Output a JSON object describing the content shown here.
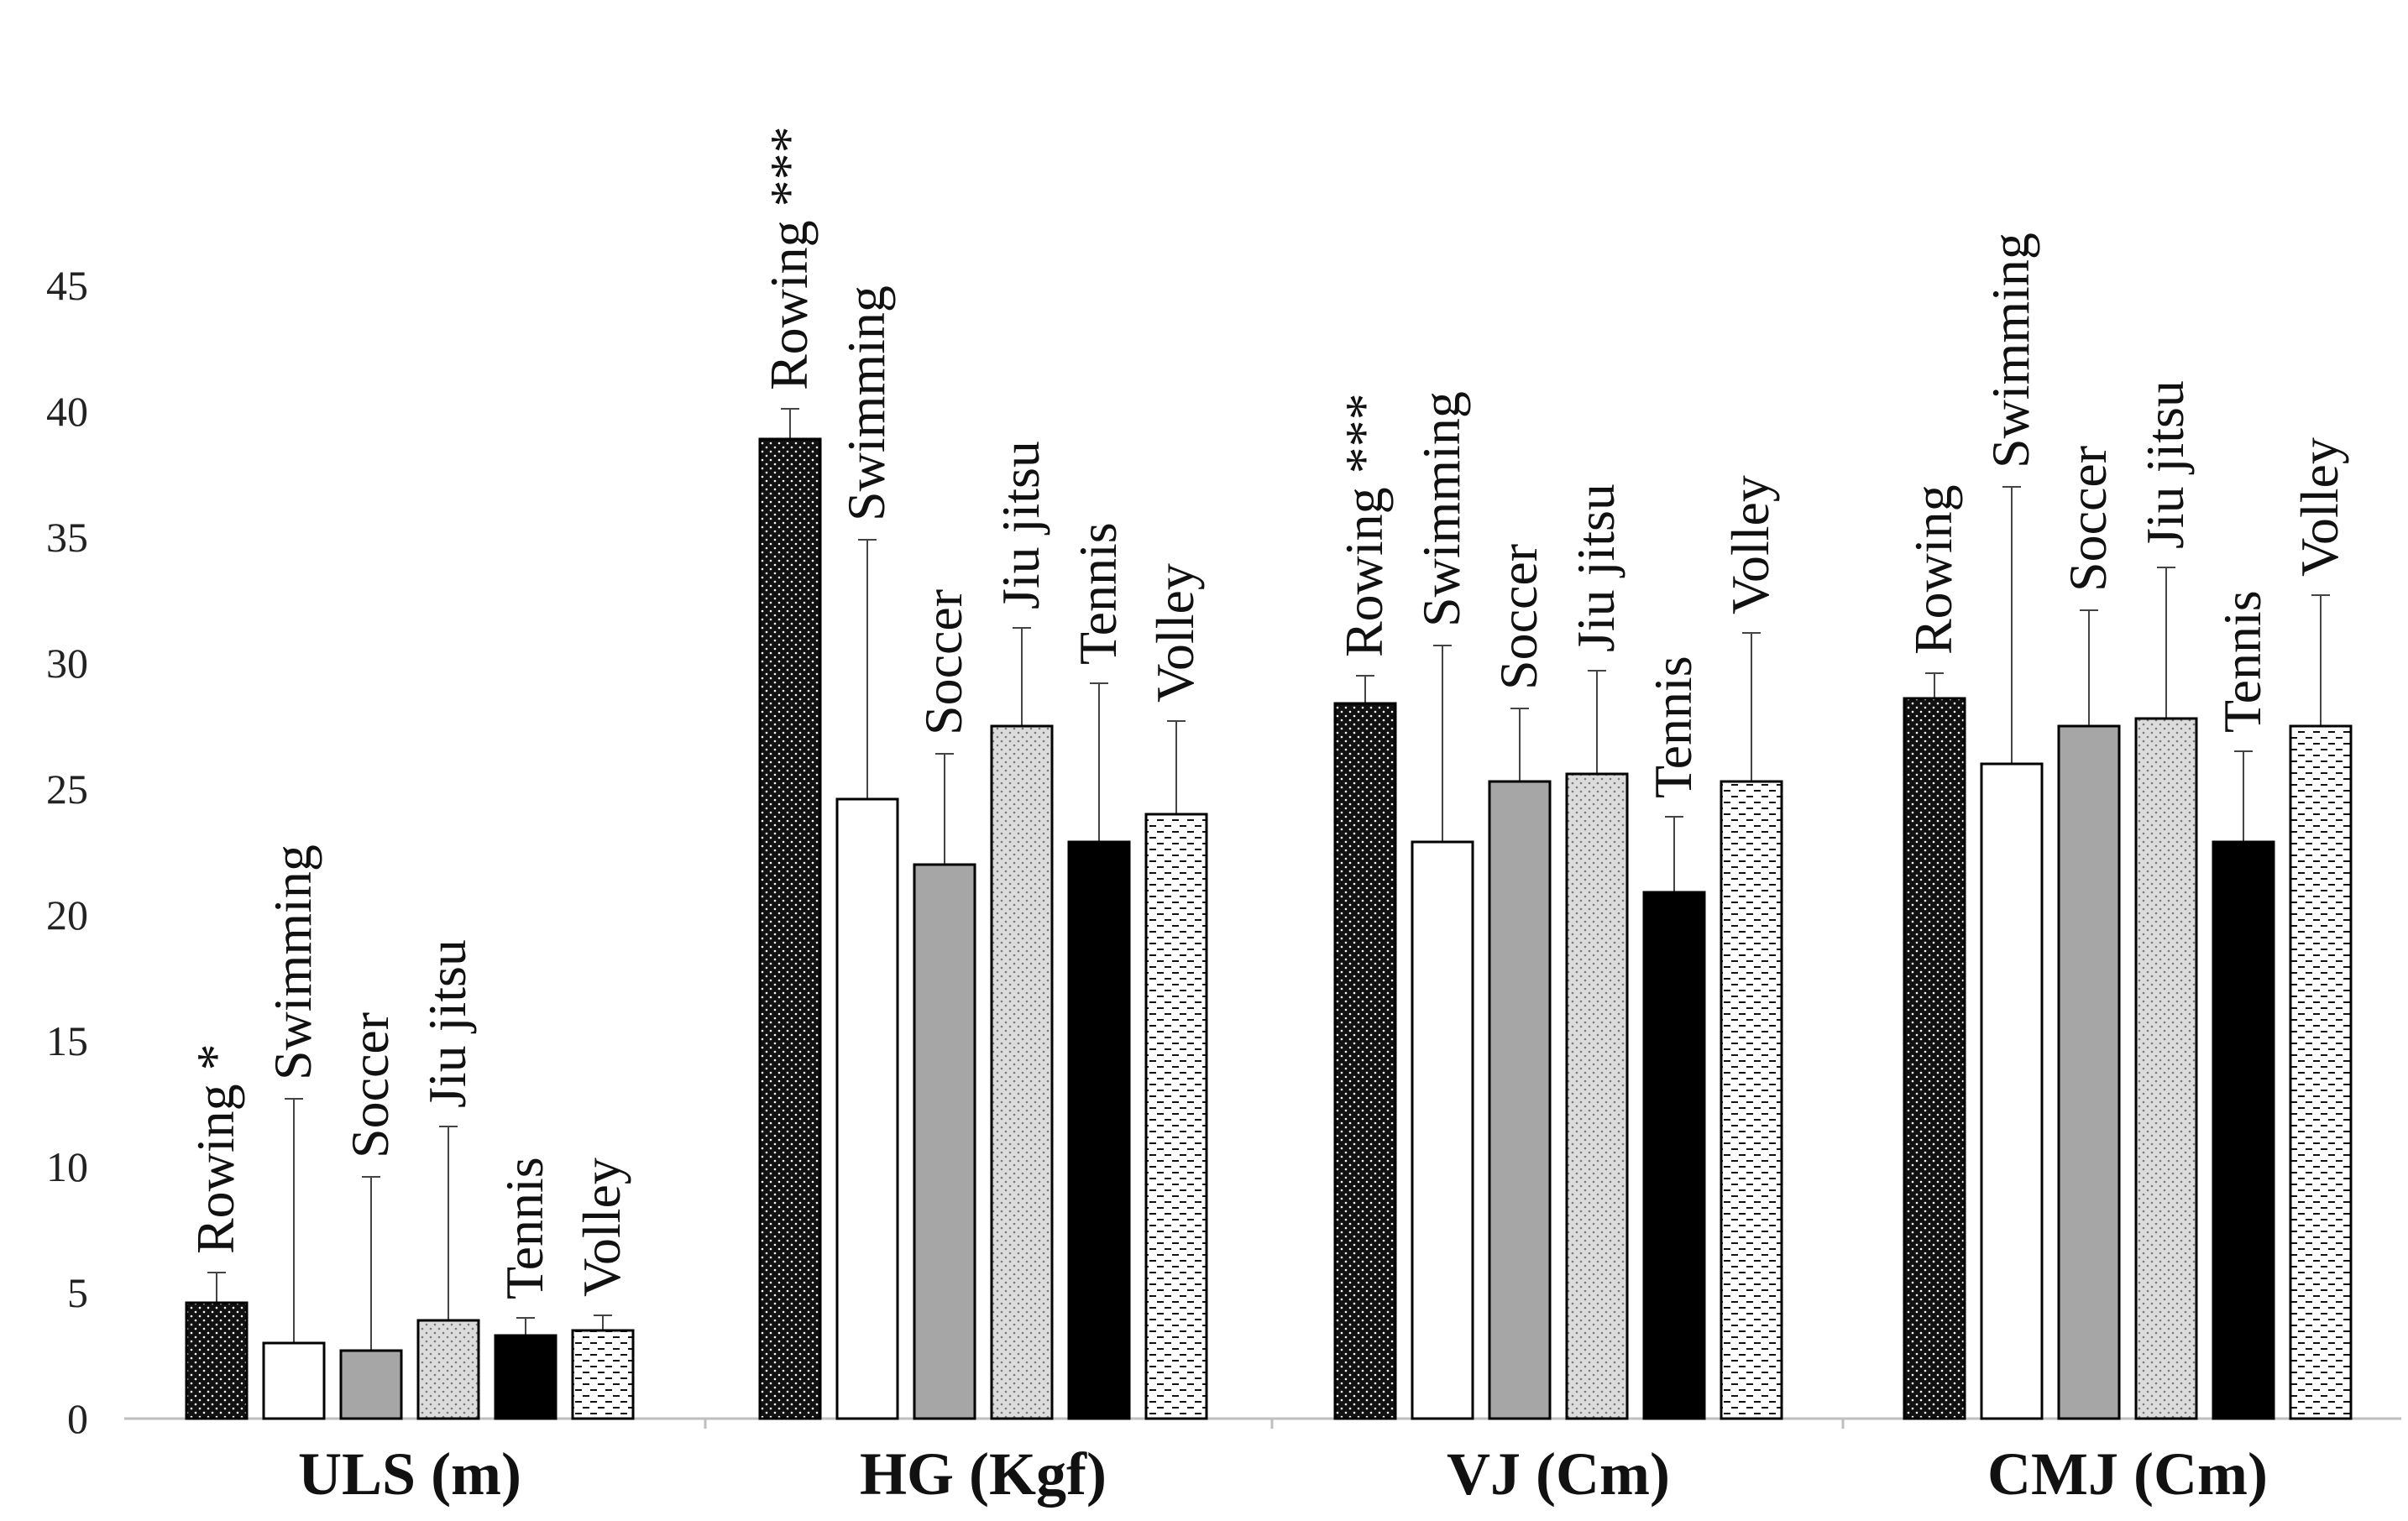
{
  "chart_data": {
    "type": "bar",
    "title": "",
    "xlabel": "",
    "ylabel": "",
    "ylim": [
      0,
      45
    ],
    "yticks": [
      0,
      5,
      10,
      15,
      20,
      25,
      30,
      35,
      40,
      45
    ],
    "grid": false,
    "categories": [
      "ULS (m)",
      "HG (Kgf)",
      "VJ (Cm)",
      "CMJ (Cm)"
    ],
    "series": [
      {
        "name": "Rowing",
        "pattern": "dots-on-black",
        "values": [
          4.6,
          38.9,
          28.4,
          28.6
        ],
        "errors": [
          1.2,
          1.2,
          1.1,
          1.0
        ]
      },
      {
        "name": "Swimming",
        "pattern": "white",
        "values": [
          3.0,
          24.6,
          22.9,
          26.0
        ],
        "errors": [
          9.7,
          10.3,
          7.8,
          11.0
        ]
      },
      {
        "name": "Soccer",
        "pattern": "gray",
        "values": [
          2.7,
          22.0,
          25.3,
          27.5
        ],
        "errors": [
          6.9,
          4.4,
          2.9,
          4.6
        ]
      },
      {
        "name": "Jiu jitsu",
        "pattern": "dots-on-light",
        "values": [
          3.9,
          27.5,
          25.6,
          27.8
        ],
        "errors": [
          7.7,
          3.9,
          4.1,
          6.0
        ]
      },
      {
        "name": "Tennis",
        "pattern": "black",
        "values": [
          3.3,
          22.9,
          20.9,
          22.9
        ],
        "errors": [
          0.7,
          6.3,
          3.0,
          3.6
        ]
      },
      {
        "name": "Volley",
        "pattern": "dashes",
        "values": [
          3.5,
          24.0,
          25.3,
          27.5
        ],
        "errors": [
          0.6,
          3.7,
          5.9,
          5.2
        ]
      }
    ],
    "bar_labels": [
      [
        "Rowing *",
        "Swimming",
        "Soccer",
        "Jiu jitsu",
        "Tennis",
        "Volley"
      ],
      [
        "Rowing ***",
        "Swimming",
        "Soccer",
        "Jiu jitsu",
        "Tennis",
        "Volley"
      ],
      [
        "Rowing ***",
        "Swimming",
        "Soccer",
        "Jiu jitsu",
        "Tennis",
        "Volley"
      ],
      [
        "Rowing",
        "Swimming",
        "Soccer",
        "Jiu jitsu",
        "Tennis",
        "Volley"
      ]
    ]
  }
}
